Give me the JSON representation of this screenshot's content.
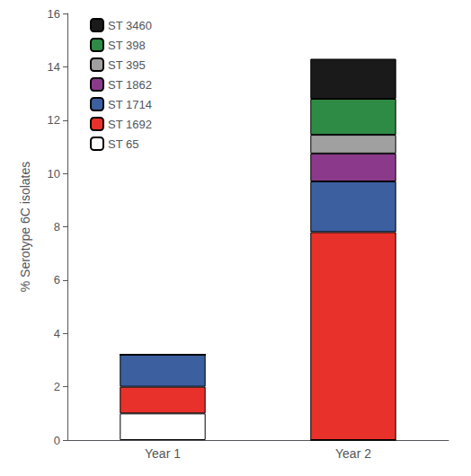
{
  "chart_data": {
    "type": "bar",
    "stacked": true,
    "categories": [
      "Year 1",
      "Year 2"
    ],
    "series": [
      {
        "name": "ST 65",
        "color": "#ffffff",
        "values": [
          1.0,
          0.0
        ]
      },
      {
        "name": "ST 1692",
        "color": "#e8312a",
        "values": [
          1.0,
          7.8
        ]
      },
      {
        "name": "ST 1714",
        "color": "#3c5fa0",
        "values": [
          1.2,
          1.9
        ]
      },
      {
        "name": "ST 1862",
        "color": "#8b3a8b",
        "values": [
          0.0,
          1.05
        ]
      },
      {
        "name": "ST 395",
        "color": "#a0a0a0",
        "values": [
          0.0,
          0.7
        ]
      },
      {
        "name": "ST 398",
        "color": "#2e8b45",
        "values": [
          0.0,
          1.35
        ]
      },
      {
        "name": "ST 3460",
        "color": "#1a1a1a",
        "values": [
          0.0,
          1.5
        ]
      }
    ],
    "ylabel": "% Serotype 6C isolates",
    "ylim": [
      0,
      16
    ],
    "yticks": [
      0,
      2,
      4,
      6,
      8,
      10,
      12,
      14,
      16
    ],
    "grid": false,
    "legend": "upper left"
  }
}
